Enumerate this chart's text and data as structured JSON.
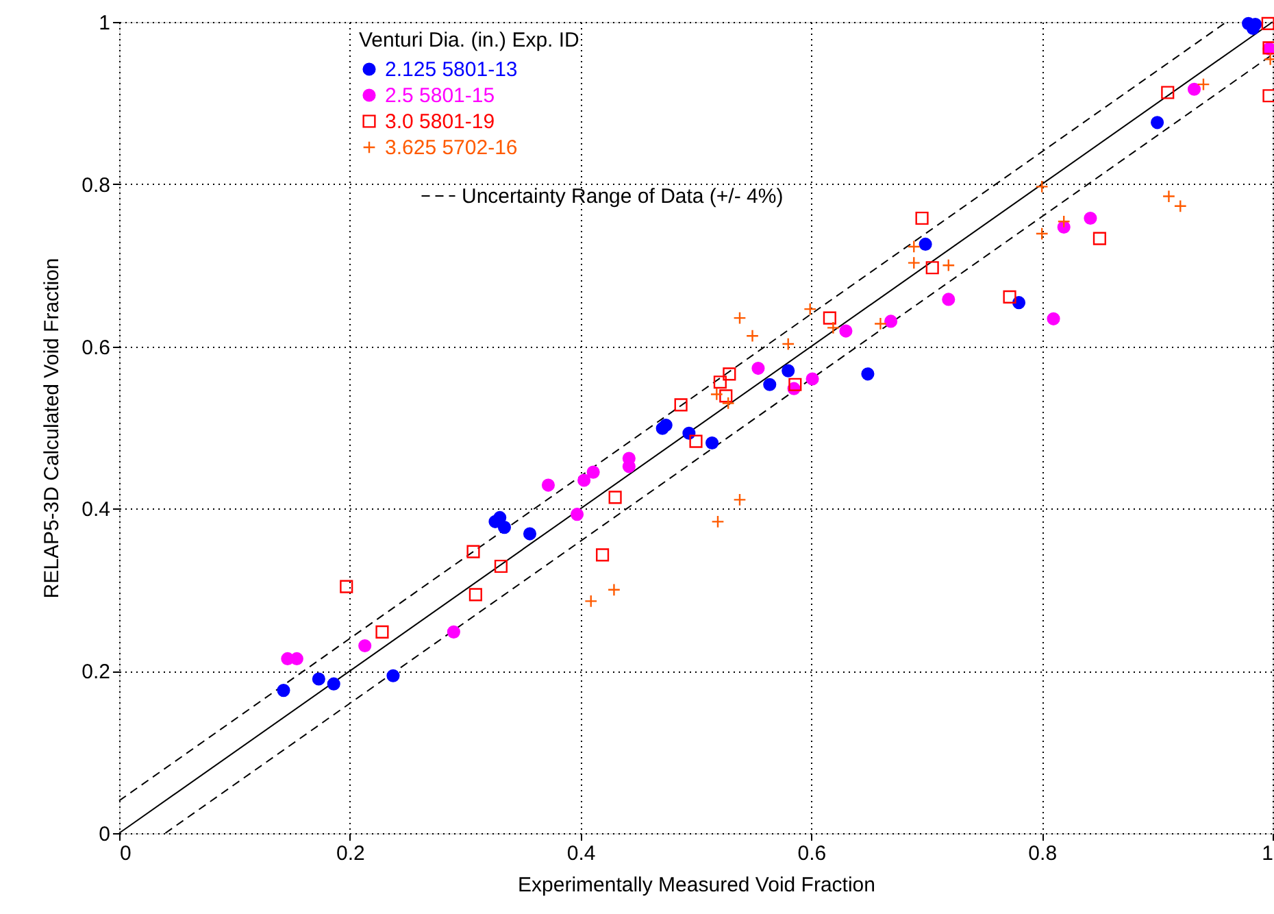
{
  "chart_data": {
    "type": "scatter",
    "xlabel": "Experimentally Measured Void Fraction",
    "ylabel": "RELAP5-3D Calculated Void Fraction",
    "legend_title": "Venturi Dia. (in.)  Exp. ID",
    "legend": "top",
    "grid": true,
    "xlim": [
      0,
      1
    ],
    "ylim": [
      0,
      1
    ],
    "xticks": [
      0,
      0.2,
      0.4,
      0.6,
      0.8,
      1
    ],
    "yticks": [
      0,
      0.2,
      0.4,
      0.6,
      0.8,
      1
    ],
    "series": [
      {
        "name": "2.125  5801-13",
        "color": "#0000ff",
        "marker": "circle",
        "x": [
          0.1425,
          0.173,
          0.186,
          0.2375,
          0.326,
          0.33,
          0.334,
          0.356,
          0.471,
          0.474,
          0.494,
          0.514,
          0.564,
          0.58,
          0.649,
          0.699,
          0.78,
          0.9,
          0.979,
          0.983,
          0.985
        ],
        "values": [
          0.176,
          0.19,
          0.184,
          0.194,
          0.384,
          0.389,
          0.377,
          0.369,
          0.499,
          0.503,
          0.493,
          0.481,
          0.553,
          0.57,
          0.566,
          0.726,
          0.654,
          0.876,
          0.998,
          0.992,
          0.997
        ]
      },
      {
        "name": "2.5  5801-15",
        "color": "#ff00ff",
        "marker": "circle",
        "x": [
          0.146,
          0.154,
          0.213,
          0.29,
          0.372,
          0.397,
          0.403,
          0.411,
          0.442,
          0.442,
          0.554,
          0.585,
          0.601,
          0.63,
          0.669,
          0.719,
          0.81,
          0.819,
          0.842,
          0.932,
          0.997
        ],
        "values": [
          0.215,
          0.215,
          0.231,
          0.248,
          0.429,
          0.393,
          0.435,
          0.445,
          0.462,
          0.452,
          0.573,
          0.548,
          0.56,
          0.619,
          0.631,
          0.658,
          0.634,
          0.747,
          0.758,
          0.917,
          0.967
        ]
      },
      {
        "name": "3.0  5801-19",
        "color": "#ff0000",
        "marker": "square",
        "x": [
          0.197,
          0.228,
          0.307,
          0.331,
          0.309,
          0.43,
          0.419,
          0.487,
          0.5,
          0.521,
          0.529,
          0.526,
          0.616,
          0.586,
          0.696,
          0.705,
          0.772,
          0.85,
          0.909,
          0.996,
          0.997,
          0.997
        ],
        "values": [
          0.304,
          0.248,
          0.347,
          0.329,
          0.294,
          0.414,
          0.343,
          0.528,
          0.483,
          0.556,
          0.566,
          0.539,
          0.635,
          0.553,
          0.758,
          0.697,
          0.661,
          0.733,
          0.913,
          0.998,
          0.968,
          0.909
        ]
      },
      {
        "name": "3.625  5702-16",
        "color": "#ff5a00",
        "marker": "cross",
        "x": [
          0.409,
          0.429,
          0.519,
          0.518,
          0.528,
          0.538,
          0.538,
          0.549,
          0.58,
          0.599,
          0.619,
          0.66,
          0.689,
          0.689,
          0.719,
          0.8,
          0.8,
          0.819,
          0.91,
          0.92,
          0.94,
          0.998
        ],
        "values": [
          0.286,
          0.3,
          0.384,
          0.541,
          0.53,
          0.411,
          0.635,
          0.613,
          0.603,
          0.646,
          0.623,
          0.628,
          0.723,
          0.703,
          0.7,
          0.797,
          0.739,
          0.754,
          0.785,
          0.773,
          0.923,
          0.954
        ]
      },
      {
        "type": "line",
        "color": "#000000",
        "line_style": "solid",
        "x": [
          0,
          1
        ],
        "values": [
          0,
          1
        ]
      },
      {
        "type": "line",
        "name": "Uncertainty Range of Data (+/- 4%)",
        "color": "#000000",
        "line_style": "dashed",
        "x": [
          0,
          0.96
        ],
        "values": [
          0.04,
          1
        ]
      },
      {
        "type": "line",
        "color": "#000000",
        "line_style": "dashed",
        "x": [
          0.04,
          1
        ],
        "values": [
          0,
          0.96
        ]
      }
    ]
  }
}
